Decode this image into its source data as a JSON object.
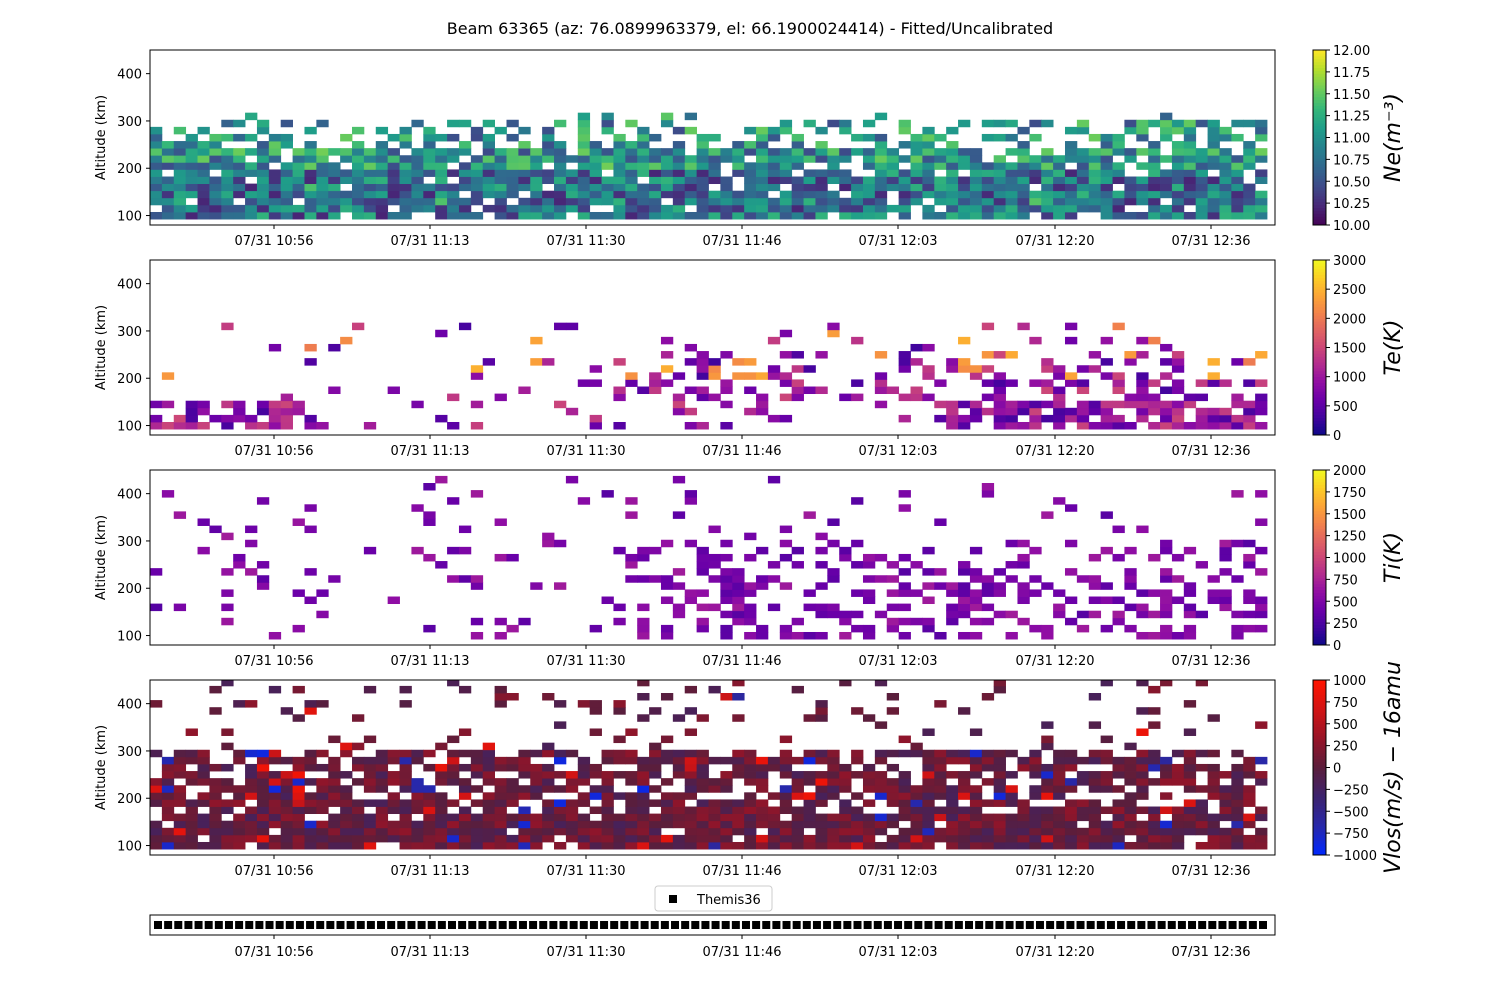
{
  "title": "Beam 63365 (az: 76.0899963379, el: 66.1900024414) - Fitted/Uncalibrated",
  "x_tick_labels": [
    "07/31 10:56",
    "07/31 11:13",
    "07/31 11:30",
    "07/31 11:46",
    "07/31 12:03",
    "07/31 12:20",
    "07/31 12:36"
  ],
  "y_axis_label": "Altitude (km)",
  "y_tick_labels": [
    "100",
    "200",
    "300",
    "400"
  ],
  "chart_data": [
    {
      "type": "heatmap",
      "name": "ne",
      "colorbar_label": "Ne(m^-3)",
      "colormap": "viridis",
      "clim": [
        10.0,
        12.0
      ],
      "colorbar_ticks": [
        "10.00",
        "10.25",
        "10.50",
        "10.75",
        "11.00",
        "11.25",
        "11.50",
        "11.75",
        "12.00"
      ],
      "ylim": [
        80,
        450
      ],
      "xlabel": "",
      "ylabel": "Altitude (km)",
      "x_range": [
        "07/31 10:41",
        "07/31 12:44"
      ],
      "altitude_coverage_km": [
        100,
        320
      ],
      "typical_value_range": [
        10.2,
        11.3
      ],
      "peak_values": [
        11.5,
        11.6
      ]
    },
    {
      "type": "heatmap",
      "name": "te",
      "colorbar_label": "Te(K)",
      "colormap": "plasma",
      "clim": [
        0,
        3000
      ],
      "colorbar_ticks": [
        "0",
        "500",
        "1000",
        "1500",
        "2000",
        "2500",
        "3000"
      ],
      "ylim": [
        80,
        450
      ],
      "xlabel": "",
      "ylabel": "Altitude (km)",
      "altitude_coverage_km": [
        100,
        320
      ],
      "typical_value_range": [
        300,
        1500
      ],
      "peak_values": [
        2000,
        2500
      ]
    },
    {
      "type": "heatmap",
      "name": "ti",
      "colorbar_label": "Ti(K)",
      "colormap": "plasma",
      "clim": [
        0,
        2000
      ],
      "colorbar_ticks": [
        "0",
        "250",
        "500",
        "750",
        "1000",
        "1250",
        "1500",
        "1750",
        "2000"
      ],
      "ylim": [
        80,
        450
      ],
      "xlabel": "",
      "ylabel": "Altitude (km)",
      "altitude_coverage_km": [
        100,
        440
      ],
      "typical_value_range": [
        300,
        700
      ],
      "peak_values": [
        800
      ]
    },
    {
      "type": "heatmap",
      "name": "vlos",
      "colorbar_label": "Vlos(m/s) - 16amu",
      "colormap": "bwr",
      "clim": [
        -1000,
        1000
      ],
      "colorbar_ticks": [
        "-1000",
        "-750",
        "-500",
        "-250",
        "0",
        "250",
        "500",
        "750",
        "1000"
      ],
      "ylim": [
        80,
        450
      ],
      "xlabel": "",
      "ylabel": "Altitude (km)",
      "altitude_coverage_km": [
        100,
        450
      ],
      "typical_value_range": [
        -200,
        300
      ],
      "peak_values": [
        -900,
        900
      ]
    },
    {
      "type": "scatter",
      "name": "themis",
      "legend": "Themis36",
      "marker": "square",
      "points": 110
    }
  ]
}
